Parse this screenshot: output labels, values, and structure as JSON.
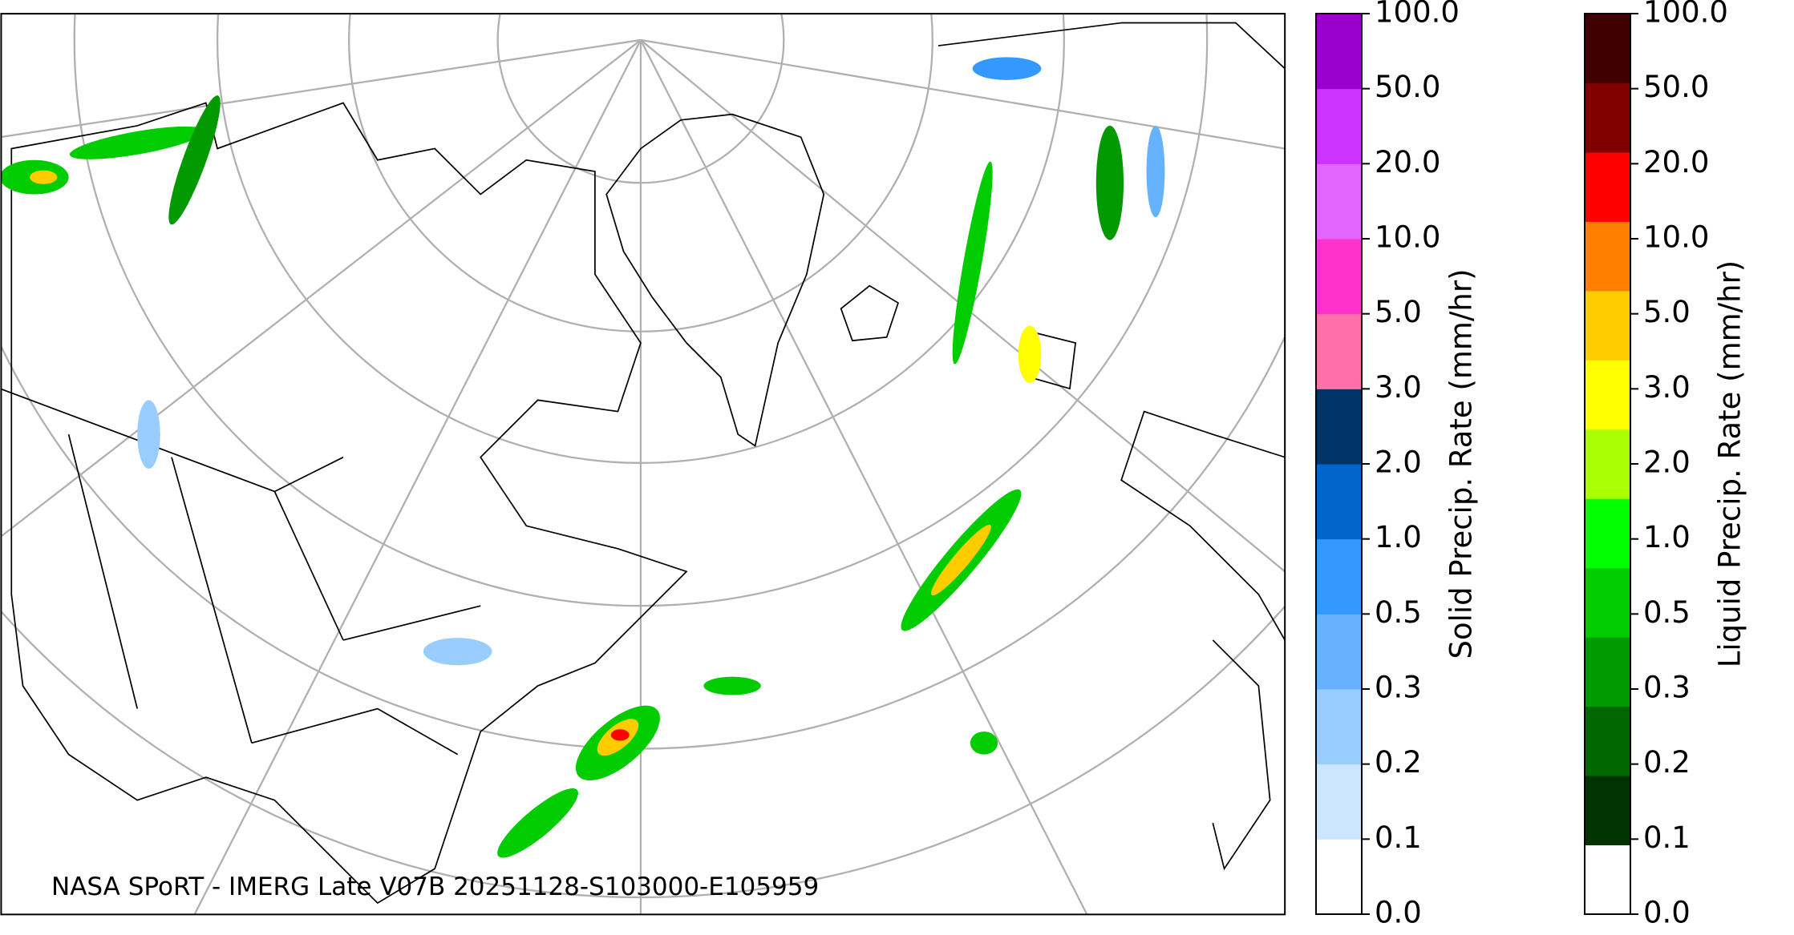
{
  "caption": "NASA SPoRT - IMERG Late V07B 20251128-S103000-E105959",
  "colorbars": [
    {
      "label": "Solid Precip. Rate (mm/hr)",
      "ticks": [
        "0.0",
        "0.1",
        "0.2",
        "0.3",
        "0.5",
        "1.0",
        "2.0",
        "3.0",
        "5.0",
        "10.0",
        "20.0",
        "50.0",
        "100.0"
      ],
      "colors": [
        "#ffffff",
        "#cce6ff",
        "#99ccff",
        "#66b2ff",
        "#3399ff",
        "#0066cc",
        "#003366",
        "#ff6fa8",
        "#ff33cc",
        "#e066ff",
        "#cc33ff",
        "#9900cc"
      ]
    },
    {
      "label": "Liquid Precip. Rate (mm/hr)",
      "ticks": [
        "0.0",
        "0.1",
        "0.2",
        "0.3",
        "0.5",
        "1.0",
        "2.0",
        "3.0",
        "5.0",
        "10.0",
        "20.0",
        "50.0",
        "100.0"
      ],
      "colors": [
        "#ffffff",
        "#003300",
        "#006600",
        "#009900",
        "#00cc00",
        "#00ff00",
        "#aaff00",
        "#ffff00",
        "#ffcc00",
        "#ff8000",
        "#ff0000",
        "#800000",
        "#400000"
      ]
    }
  ]
}
